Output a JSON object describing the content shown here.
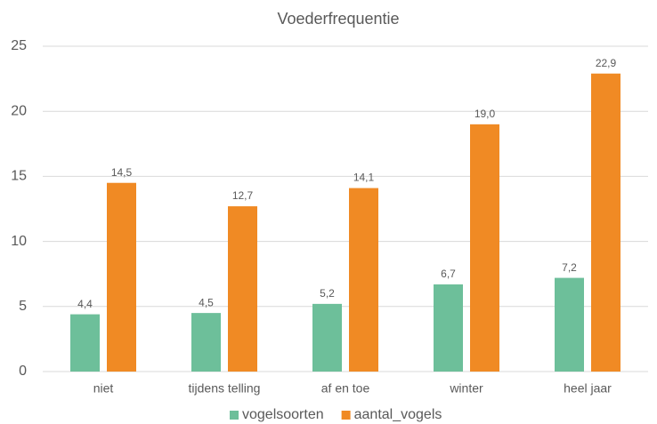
{
  "chart_data": {
    "type": "bar",
    "title": "Voederfrequentie",
    "categories": [
      "niet",
      "tijdens telling",
      "af en toe",
      "winter",
      "heel jaar"
    ],
    "series": [
      {
        "name": "vogelsoorten",
        "color": "#6dbf9a",
        "values": [
          4.4,
          4.5,
          5.2,
          6.7,
          7.2
        ],
        "value_labels": [
          "4,4",
          "4,5",
          "5,2",
          "6,7",
          "7,2"
        ]
      },
      {
        "name": "aantal_vogels",
        "color": "#f08a24",
        "values": [
          14.5,
          12.7,
          14.1,
          19.0,
          22.9
        ],
        "value_labels": [
          "14,5",
          "12,7",
          "14,1",
          "19,0",
          "22,9"
        ]
      }
    ],
    "ylim": [
      0,
      25
    ],
    "yticks": [
      0,
      5,
      10,
      15,
      20,
      25
    ],
    "grid": true,
    "legend": "bottom"
  }
}
